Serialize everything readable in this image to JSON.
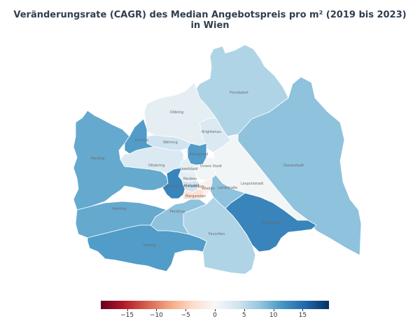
{
  "title": {
    "line1": "Veränderungsrate (CAGR) des Median Angebotspreis pro m² (2019 bis 2023)",
    "line2": "in Wien"
  },
  "districts": [
    {
      "key": "floridsdorf",
      "name": "Floridsdorf",
      "value": 6
    },
    {
      "key": "donaustadt",
      "name": "Donaustadt",
      "value": 8
    },
    {
      "key": "doebling",
      "name": "Döbling",
      "value": 2
    },
    {
      "key": "brigittenau",
      "name": "Brigittenau",
      "value": 3
    },
    {
      "key": "leopoldstadt",
      "name": "Leopoldstadt",
      "value": 0.5
    },
    {
      "key": "landstrasse",
      "name": "Landstraße",
      "value": 8
    },
    {
      "key": "simmering",
      "name": "Simmering",
      "value": 13
    },
    {
      "key": "favoriten",
      "name": "Favoriten",
      "value": 6
    },
    {
      "key": "liesing",
      "name": "Liesing",
      "value": 11
    },
    {
      "key": "meidling",
      "name": "Meidling",
      "value": 8
    },
    {
      "key": "hietzing",
      "name": "Hietzing",
      "value": 10
    },
    {
      "key": "penzing",
      "name": "Penzing",
      "value": 10
    },
    {
      "key": "ottakring",
      "name": "Ottakring",
      "value": 3
    },
    {
      "key": "hernals",
      "name": "Hernals",
      "value": 11
    },
    {
      "key": "waehring",
      "name": "Währing",
      "value": 4
    },
    {
      "key": "alsergrund",
      "name": "Alsergrund",
      "value": 11
    },
    {
      "key": "josefstadt",
      "name": "Josefstadt",
      "value": 2
    },
    {
      "key": "innere_stadt",
      "name": "Innere Stadt",
      "value": 0.5
    },
    {
      "key": "neubau",
      "name": "Neubau",
      "value": 2
    },
    {
      "key": "mariahilf",
      "name": "Mariahilf",
      "value": 4
    },
    {
      "key": "rudolfsheim",
      "name": "Rudolfsheim-Fünfhaus",
      "value": 13
    },
    {
      "key": "margareten",
      "name": "Margareten",
      "value": -3
    },
    {
      "key": "wieden",
      "name": "Wieden",
      "value": -1
    }
  ],
  "colorbar": {
    "min": -19.5,
    "max": 19.5,
    "ticks": [
      "−15",
      "−10",
      "−5",
      "0",
      "5",
      "10",
      "15"
    ],
    "tick_values": [
      -15,
      -10,
      -5,
      0,
      5,
      10,
      15
    ],
    "colors": [
      "#67001f",
      "#b2182b",
      "#d6604d",
      "#f4a582",
      "#fddbc7",
      "#f7f7f7",
      "#d1e5f0",
      "#92c5de",
      "#4393c3",
      "#2166ac",
      "#053061"
    ]
  }
}
